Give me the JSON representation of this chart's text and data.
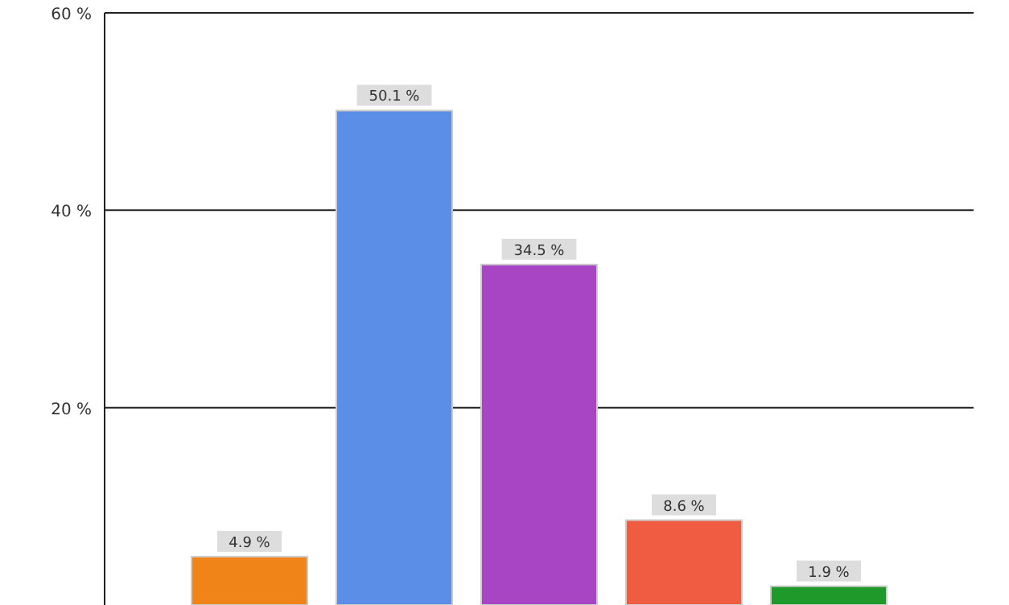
{
  "chart_data": {
    "type": "bar",
    "categories": [
      null,
      null,
      null,
      null,
      null
    ],
    "values": [
      4.9,
      50.1,
      34.5,
      8.6,
      1.9
    ],
    "colors": [
      "#f08418",
      "#5b8ee6",
      "#a845c4",
      "#f05c42",
      "#1f9a2a"
    ],
    "value_labels": [
      "4.9 %",
      "50.1 %",
      "34.5 %",
      "8.6 %",
      "1.9 %"
    ],
    "ylim": [
      0,
      60
    ],
    "yticks": [
      {
        "value": 20,
        "label": "20 %"
      },
      {
        "value": 40,
        "label": "40 %"
      },
      {
        "value": 60,
        "label": "60 %"
      }
    ],
    "grid": "y"
  }
}
